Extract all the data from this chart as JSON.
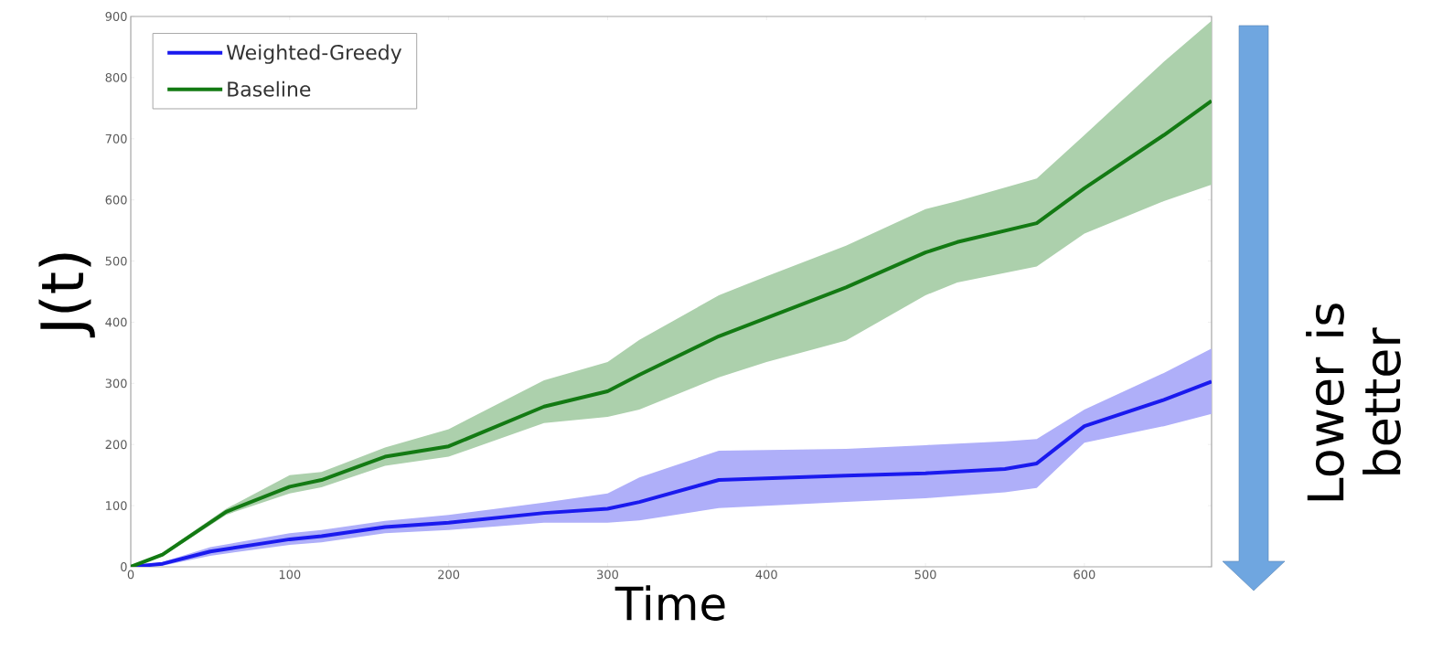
{
  "chart_data": {
    "type": "line",
    "xlabel": "Time",
    "ylabel": "J(t)",
    "annotations": [
      "Lower is better"
    ],
    "series": [
      {
        "name": "Weighted-Greedy",
        "color": "#1a1aee",
        "x": [
          0,
          20,
          50,
          100,
          120,
          160,
          200,
          260,
          300,
          320,
          370,
          450,
          500,
          550,
          570,
          600,
          650,
          680
        ],
        "values": [
          0,
          5,
          25,
          45,
          50,
          65,
          72,
          88,
          95,
          106,
          142,
          149,
          153,
          160,
          169,
          230,
          273,
          303
        ],
        "lower": [
          0,
          2,
          18,
          36,
          40,
          55,
          60,
          72,
          72,
          76,
          96,
          106,
          112,
          122,
          129,
          203,
          230,
          250
        ],
        "upper": [
          0,
          8,
          32,
          55,
          60,
          75,
          85,
          105,
          120,
          146,
          190,
          193,
          199,
          205,
          209,
          257,
          317,
          357
        ]
      },
      {
        "name": "Baseline",
        "color": "#137a13",
        "x": [
          0,
          20,
          60,
          100,
          120,
          160,
          200,
          260,
          300,
          320,
          370,
          400,
          450,
          500,
          520,
          570,
          600,
          650,
          680
        ],
        "values": [
          0,
          20,
          90,
          131,
          142,
          180,
          197,
          262,
          287,
          314,
          377,
          407,
          457,
          514,
          531,
          562,
          619,
          706,
          762
        ],
        "lower": [
          0,
          17,
          85,
          120,
          130,
          165,
          180,
          235,
          245,
          257,
          310,
          335,
          370,
          444,
          465,
          491,
          545,
          598,
          625
        ],
        "upper": [
          0,
          23,
          95,
          150,
          155,
          195,
          225,
          305,
          335,
          371,
          444,
          475,
          525,
          585,
          598,
          635,
          706,
          826,
          893
        ]
      }
    ],
    "xlim": [
      0,
      680
    ],
    "ylim": [
      0,
      900
    ],
    "xticks": [
      0,
      100,
      200,
      300,
      400,
      500,
      600
    ],
    "yticks": [
      0,
      100,
      200,
      300,
      400,
      500,
      600,
      700,
      800,
      900
    ],
    "legend": "top left",
    "grid": false,
    "marker": "none",
    "line_style": "solid"
  }
}
